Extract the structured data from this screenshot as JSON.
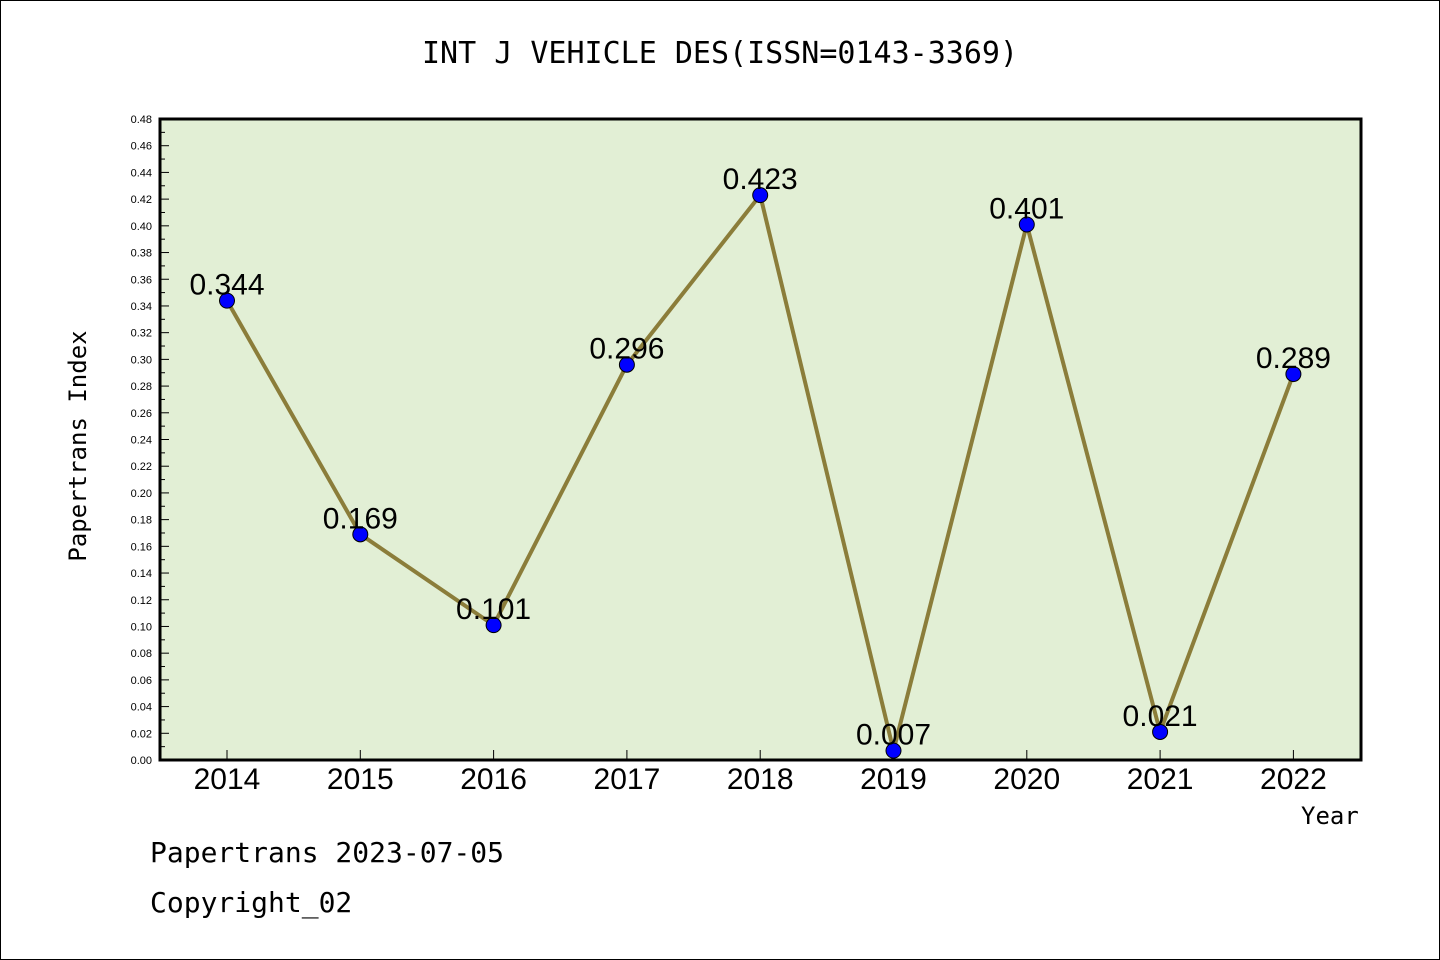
{
  "title": "INT J VEHICLE DES(ISSN=0143-3369)",
  "footer": {
    "line1": "Papertrans 2023-07-05",
    "line2": "Copyright_02"
  },
  "colors": {
    "plot_background": "#e2efd5",
    "line": "#8b7d3a",
    "marker": "#0000ff",
    "axis": "#000000"
  },
  "chart_data": {
    "type": "line",
    "title": "INT J VEHICLE DES(ISSN=0143-3369)",
    "xlabel": "Year",
    "ylabel": "Papertrans Index",
    "categories": [
      "2014",
      "2015",
      "2016",
      "2017",
      "2018",
      "2019",
      "2020",
      "2021",
      "2022"
    ],
    "values": [
      0.344,
      0.169,
      0.101,
      0.296,
      0.423,
      0.007,
      0.401,
      0.021,
      0.289
    ],
    "data_labels": [
      "0.344",
      "0.169",
      "0.101",
      "0.296",
      "0.423",
      "0.007",
      "0.401",
      "0.021",
      "0.289"
    ],
    "ylim": [
      0,
      0.48
    ],
    "yticks": [
      "0.00",
      "0.02",
      "0.04",
      "0.06",
      "0.08",
      "0.10",
      "0.12",
      "0.14",
      "0.16",
      "0.18",
      "0.20",
      "0.22",
      "0.24",
      "0.26",
      "0.28",
      "0.30",
      "0.32",
      "0.34",
      "0.36",
      "0.38",
      "0.40",
      "0.42",
      "0.44",
      "0.46",
      "0.48"
    ],
    "grid": false,
    "legend": "none"
  }
}
